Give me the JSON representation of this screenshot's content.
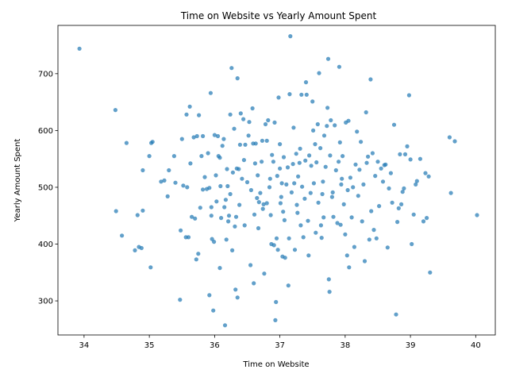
{
  "chart_data": {
    "type": "scatter",
    "title": "Time on Website vs Yearly Amount Spent",
    "xlabel": "Time on Website",
    "ylabel": "Yearly Amount Spent",
    "xlim": [
      33.6,
      40.3
    ],
    "ylim": [
      240,
      785
    ],
    "xticks": [
      34,
      35,
      36,
      37,
      38,
      39,
      40
    ],
    "yticks": [
      300,
      400,
      500,
      600,
      700
    ],
    "grid": false,
    "marker_color": "#1f77b4",
    "marker_alpha": 0.7,
    "points": [
      [
        33.93,
        744
      ],
      [
        34.48,
        636
      ],
      [
        34.49,
        458
      ],
      [
        34.58,
        415
      ],
      [
        34.65,
        578
      ],
      [
        34.78,
        389
      ],
      [
        34.82,
        451
      ],
      [
        34.84,
        395
      ],
      [
        34.88,
        393
      ],
      [
        34.9,
        459
      ],
      [
        34.9,
        530
      ],
      [
        35.0,
        555
      ],
      [
        35.02,
        359
      ],
      [
        35.03,
        578
      ],
      [
        35.05,
        580
      ],
      [
        35.18,
        510
      ],
      [
        35.23,
        512
      ],
      [
        35.28,
        484
      ],
      [
        35.3,
        530
      ],
      [
        35.38,
        555
      ],
      [
        35.4,
        508
      ],
      [
        35.47,
        302
      ],
      [
        35.48,
        424
      ],
      [
        35.5,
        585
      ],
      [
        35.52,
        503
      ],
      [
        35.56,
        412
      ],
      [
        35.57,
        628
      ],
      [
        35.58,
        500
      ],
      [
        35.6,
        412
      ],
      [
        35.62,
        642
      ],
      [
        35.63,
        542
      ],
      [
        35.65,
        448
      ],
      [
        35.68,
        588
      ],
      [
        35.7,
        445
      ],
      [
        35.72,
        373
      ],
      [
        35.73,
        590
      ],
      [
        35.75,
        383
      ],
      [
        35.76,
        627
      ],
      [
        35.78,
        464
      ],
      [
        35.8,
        555
      ],
      [
        35.82,
        590
      ],
      [
        35.82,
        496
      ],
      [
        35.85,
        518
      ],
      [
        35.88,
        497
      ],
      [
        35.9,
        560
      ],
      [
        35.92,
        310
      ],
      [
        35.92,
        499
      ],
      [
        35.94,
        666
      ],
      [
        35.95,
        465
      ],
      [
        35.95,
        450
      ],
      [
        35.96,
        409
      ],
      [
        35.98,
        283
      ],
      [
        35.99,
        404
      ],
      [
        36.0,
        592
      ],
      [
        36.02,
        521
      ],
      [
        36.03,
        475
      ],
      [
        36.05,
        590
      ],
      [
        36.06,
        555
      ],
      [
        36.08,
        358
      ],
      [
        36.08,
        552
      ],
      [
        36.09,
        502
      ],
      [
        36.1,
        446
      ],
      [
        36.12,
        573
      ],
      [
        36.14,
        585
      ],
      [
        36.15,
        465
      ],
      [
        36.16,
        257
      ],
      [
        36.17,
        478
      ],
      [
        36.18,
        408
      ],
      [
        36.19,
        532
      ],
      [
        36.2,
        502
      ],
      [
        36.21,
        440
      ],
      [
        36.22,
        450
      ],
      [
        36.24,
        488
      ],
      [
        36.24,
        628
      ],
      [
        36.26,
        710
      ],
      [
        36.27,
        389
      ],
      [
        36.28,
        526
      ],
      [
        36.3,
        603
      ],
      [
        36.31,
        431
      ],
      [
        36.32,
        320
      ],
      [
        36.33,
        448
      ],
      [
        36.34,
        533
      ],
      [
        36.35,
        692
      ],
      [
        36.35,
        306
      ],
      [
        36.37,
        532
      ],
      [
        36.38,
        469
      ],
      [
        36.39,
        575
      ],
      [
        36.4,
        630
      ],
      [
        36.42,
        515
      ],
      [
        36.44,
        620
      ],
      [
        36.45,
        548
      ],
      [
        36.46,
        433
      ],
      [
        36.47,
        575
      ],
      [
        36.5,
        509
      ],
      [
        36.52,
        591
      ],
      [
        36.53,
        615
      ],
      [
        36.55,
        363
      ],
      [
        36.56,
        495
      ],
      [
        36.58,
        639
      ],
      [
        36.59,
        577
      ],
      [
        36.6,
        331
      ],
      [
        36.61,
        452
      ],
      [
        36.62,
        542
      ],
      [
        36.63,
        577
      ],
      [
        36.65,
        481
      ],
      [
        36.66,
        521
      ],
      [
        36.67,
        428
      ],
      [
        36.68,
        474
      ],
      [
        36.7,
        490
      ],
      [
        36.72,
        545
      ],
      [
        36.73,
        582
      ],
      [
        36.74,
        462
      ],
      [
        36.75,
        470
      ],
      [
        36.76,
        348
      ],
      [
        36.78,
        611
      ],
      [
        36.8,
        582
      ],
      [
        36.8,
        472
      ],
      [
        36.82,
        618
      ],
      [
        36.84,
        500
      ],
      [
        36.85,
        515
      ],
      [
        36.86,
        451
      ],
      [
        36.87,
        400
      ],
      [
        36.88,
        557
      ],
      [
        36.9,
        545
      ],
      [
        36.91,
        398
      ],
      [
        36.92,
        614
      ],
      [
        36.93,
        266
      ],
      [
        36.94,
        298
      ],
      [
        36.95,
        410
      ],
      [
        36.96,
        520
      ],
      [
        36.97,
        390
      ],
      [
        36.98,
        658
      ],
      [
        37.0,
        576
      ],
      [
        37.0,
        533
      ],
      [
        37.01,
        472
      ],
      [
        37.02,
        483
      ],
      [
        37.03,
        507
      ],
      [
        37.04,
        378
      ],
      [
        37.05,
        457
      ],
      [
        37.06,
        553
      ],
      [
        37.07,
        442
      ],
      [
        37.08,
        376
      ],
      [
        37.1,
        505
      ],
      [
        37.12,
        535
      ],
      [
        37.13,
        327
      ],
      [
        37.14,
        410
      ],
      [
        37.15,
        664
      ],
      [
        37.16,
        766
      ],
      [
        37.18,
        491
      ],
      [
        37.2,
        541
      ],
      [
        37.21,
        605
      ],
      [
        37.22,
        507
      ],
      [
        37.23,
        390
      ],
      [
        37.25,
        559
      ],
      [
        37.26,
        469
      ],
      [
        37.27,
        455
      ],
      [
        37.28,
        519
      ],
      [
        37.3,
        543
      ],
      [
        37.31,
        568
      ],
      [
        37.32,
        433
      ],
      [
        37.33,
        663
      ],
      [
        37.34,
        501
      ],
      [
        37.36,
        412
      ],
      [
        37.38,
        480
      ],
      [
        37.39,
        547
      ],
      [
        37.4,
        685
      ],
      [
        37.41,
        663
      ],
      [
        37.43,
        441
      ],
      [
        37.44,
        380
      ],
      [
        37.45,
        556
      ],
      [
        37.47,
        490
      ],
      [
        37.48,
        538
      ],
      [
        37.5,
        651
      ],
      [
        37.51,
        600
      ],
      [
        37.52,
        507
      ],
      [
        37.54,
        576
      ],
      [
        37.55,
        420
      ],
      [
        37.56,
        544
      ],
      [
        37.58,
        611
      ],
      [
        37.59,
        473
      ],
      [
        37.6,
        701
      ],
      [
        37.62,
        569
      ],
      [
        37.63,
        433
      ],
      [
        37.64,
        411
      ],
      [
        37.65,
        488
      ],
      [
        37.66,
        510
      ],
      [
        37.67,
        447
      ],
      [
        37.68,
        591
      ],
      [
        37.7,
        536
      ],
      [
        37.72,
        608
      ],
      [
        37.73,
        640
      ],
      [
        37.74,
        726
      ],
      [
        37.75,
        338
      ],
      [
        37.76,
        316
      ],
      [
        37.77,
        556
      ],
      [
        37.78,
        618
      ],
      [
        37.8,
        483
      ],
      [
        37.81,
        491
      ],
      [
        37.82,
        448
      ],
      [
        37.84,
        609
      ],
      [
        37.86,
        530
      ],
      [
        37.88,
        437
      ],
      [
        37.9,
        545
      ],
      [
        37.91,
        712
      ],
      [
        37.92,
        579
      ],
      [
        37.93,
        434
      ],
      [
        37.94,
        505
      ],
      [
        37.95,
        515
      ],
      [
        37.96,
        555
      ],
      [
        37.98,
        470
      ],
      [
        38.0,
        417
      ],
      [
        38.01,
        614
      ],
      [
        38.03,
        380
      ],
      [
        38.04,
        495
      ],
      [
        38.05,
        617
      ],
      [
        38.06,
        359
      ],
      [
        38.08,
        517
      ],
      [
        38.1,
        447
      ],
      [
        38.12,
        500
      ],
      [
        38.14,
        395
      ],
      [
        38.16,
        540
      ],
      [
        38.18,
        598
      ],
      [
        38.2,
        485
      ],
      [
        38.22,
        531
      ],
      [
        38.24,
        580
      ],
      [
        38.26,
        440
      ],
      [
        38.28,
        505
      ],
      [
        38.3,
        370
      ],
      [
        38.32,
        632
      ],
      [
        38.33,
        543
      ],
      [
        38.35,
        554
      ],
      [
        38.37,
        408
      ],
      [
        38.39,
        690
      ],
      [
        38.4,
        458
      ],
      [
        38.42,
        560
      ],
      [
        38.44,
        425
      ],
      [
        38.46,
        520
      ],
      [
        38.48,
        410
      ],
      [
        38.5,
        545
      ],
      [
        38.52,
        467
      ],
      [
        38.55,
        533
      ],
      [
        38.58,
        510
      ],
      [
        38.6,
        539
      ],
      [
        38.62,
        540
      ],
      [
        38.65,
        394
      ],
      [
        38.67,
        498
      ],
      [
        38.7,
        525
      ],
      [
        38.72,
        473
      ],
      [
        38.75,
        610
      ],
      [
        38.78,
        276
      ],
      [
        38.8,
        439
      ],
      [
        38.82,
        463
      ],
      [
        38.84,
        558
      ],
      [
        38.86,
        470
      ],
      [
        38.88,
        492
      ],
      [
        38.9,
        498
      ],
      [
        38.92,
        558
      ],
      [
        38.95,
        572
      ],
      [
        38.98,
        662
      ],
      [
        39.0,
        549
      ],
      [
        39.02,
        400
      ],
      [
        39.05,
        452
      ],
      [
        39.08,
        505
      ],
      [
        39.1,
        511
      ],
      [
        39.15,
        550
      ],
      [
        39.2,
        440
      ],
      [
        39.23,
        525
      ],
      [
        39.25,
        446
      ],
      [
        39.28,
        519
      ],
      [
        39.3,
        350
      ],
      [
        39.6,
        588
      ],
      [
        39.62,
        490
      ],
      [
        39.68,
        581
      ],
      [
        40.02,
        451
      ]
    ]
  }
}
